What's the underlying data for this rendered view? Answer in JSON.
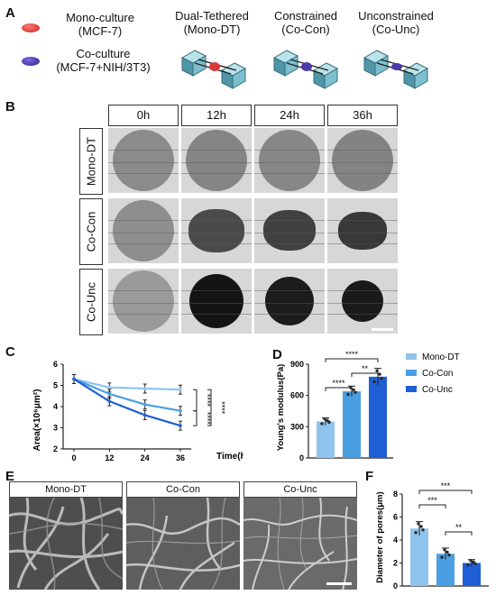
{
  "panels": {
    "A": "A",
    "B": "B",
    "C": "C",
    "D": "D",
    "E": "E",
    "F": "F"
  },
  "panel_a": {
    "legend": [
      {
        "label_line1": "Mono-culture",
        "label_line2": "(MCF-7)",
        "color": "#d93a3a"
      },
      {
        "label_line1": "Co-culture",
        "label_line2": "(MCF-7+NIH/3T3)",
        "color": "#4a3aa8"
      }
    ],
    "columns": [
      {
        "line1": "Dual-Tethered",
        "line2": "(Mono-DT)",
        "ball_color": "#d93a3a",
        "device_icon": "dual-tethered-device-icon"
      },
      {
        "line1": "Constrained",
        "line2": "(Co-Con)",
        "ball_color": "#4a3aa8",
        "device_icon": "constrained-device-icon"
      },
      {
        "line1": "Unconstrained",
        "line2": "(Co-Unc)",
        "ball_color": "#4a3aa8",
        "device_icon": "unconstrained-device-icon"
      }
    ]
  },
  "panel_b": {
    "time_headers": [
      "0h",
      "12h",
      "24h",
      "36h"
    ],
    "rows": [
      "Mono-DT",
      "Co-Con",
      "Co-Unc"
    ]
  },
  "chart_data": [
    {
      "type": "line",
      "panel": "C",
      "x": [
        0,
        12,
        24,
        36
      ],
      "xlabel": "Time(h)",
      "ylabel": "Area(×10⁶μm²)",
      "ylim": [
        2,
        6
      ],
      "yticks": [
        2,
        3,
        4,
        5,
        6
      ],
      "series": [
        {
          "name": "Mono-DT",
          "values": [
            5.3,
            4.9,
            4.85,
            4.8
          ],
          "color": "#8fc4ee"
        },
        {
          "name": "Co-Con",
          "values": [
            5.3,
            4.6,
            4.1,
            3.8
          ],
          "color": "#4a9ee2"
        },
        {
          "name": "Co-Unc",
          "values": [
            5.3,
            4.25,
            3.6,
            3.1
          ],
          "color": "#1f5fd6"
        }
      ],
      "significance": [
        "****",
        "****",
        "****"
      ]
    },
    {
      "type": "bar",
      "panel": "D",
      "categories": [
        "Mono-DT",
        "Co-Con",
        "Co-Unc"
      ],
      "values": [
        350,
        640,
        780
      ],
      "errors": [
        35,
        50,
        80
      ],
      "colors": [
        "#8fc4ee",
        "#4a9ee2",
        "#1f5fd6"
      ],
      "ylabel": "Young's modulus(Pa)",
      "ylim": [
        0,
        900
      ],
      "yticks": [
        0,
        300,
        600,
        900
      ],
      "significance": [
        {
          "from": 0,
          "to": 2,
          "label": "****"
        },
        {
          "from": 1,
          "to": 2,
          "label": "**"
        },
        {
          "from": 0,
          "to": 1,
          "label": "****"
        }
      ],
      "legend": [
        "Mono-DT",
        "Co-Con",
        "Co-Unc"
      ]
    },
    {
      "type": "bar",
      "panel": "F",
      "categories": [
        "Mono-DT",
        "Co-Con",
        "Co-Unc"
      ],
      "values": [
        5.0,
        2.8,
        2.0
      ],
      "errors": [
        0.6,
        0.5,
        0.3
      ],
      "colors": [
        "#8fc4ee",
        "#4a9ee2",
        "#1f5fd6"
      ],
      "ylabel": "Diameter of pores(μm)",
      "ylim": [
        0,
        8
      ],
      "yticks": [
        0,
        2,
        4,
        6,
        8
      ],
      "significance": [
        {
          "from": 0,
          "to": 2,
          "label": "***"
        },
        {
          "from": 0,
          "to": 1,
          "label": "***"
        },
        {
          "from": 1,
          "to": 2,
          "label": "**"
        }
      ]
    }
  ],
  "panel_e": {
    "labels": [
      "Mono-DT",
      "Co-Con",
      "Co-Unc"
    ]
  }
}
